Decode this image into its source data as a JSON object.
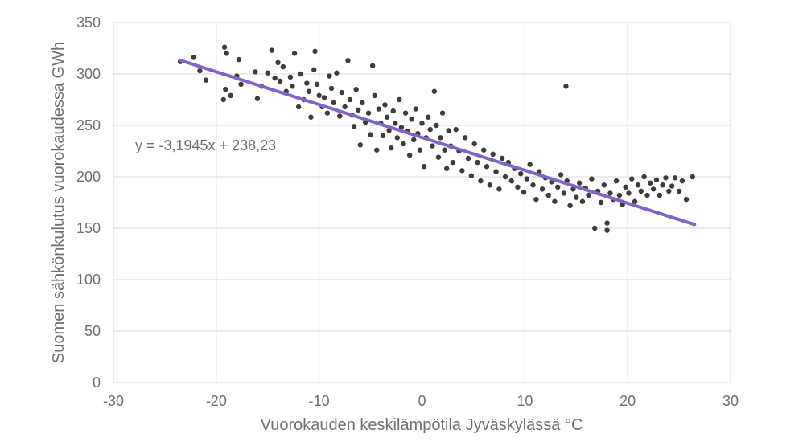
{
  "chart_data": {
    "type": "scatter",
    "title": "",
    "xlabel": "Vuorokauden keskilämpötila Jyväskylässä °C",
    "ylabel": "Suomen sähkönkulutus vuorokaudessa GWh",
    "xlim": [
      -30,
      30
    ],
    "ylim": [
      0,
      350
    ],
    "x_ticks": [
      -30,
      -20,
      -10,
      0,
      10,
      20,
      30
    ],
    "y_ticks": [
      0,
      50,
      100,
      150,
      200,
      250,
      300,
      350
    ],
    "grid": true,
    "legend": "none",
    "colors": {
      "points": "#3c3c3c",
      "trendline": "#8064c8",
      "grid": "#d9d9d9",
      "text": "#6f6f6f"
    },
    "series": [
      {
        "type": "scatter",
        "values": [
          [
            -23.5,
            312
          ],
          [
            -22.2,
            316
          ],
          [
            -21.6,
            303
          ],
          [
            -21.0,
            294
          ],
          [
            -19.2,
            326
          ],
          [
            -19.0,
            320
          ],
          [
            -19.1,
            285
          ],
          [
            -19.3,
            275
          ],
          [
            -18.6,
            279
          ],
          [
            -18.0,
            298
          ],
          [
            -17.8,
            314
          ],
          [
            -17.6,
            290
          ],
          [
            -16.2,
            302
          ],
          [
            -16.0,
            276
          ],
          [
            -15.6,
            288
          ],
          [
            -15.0,
            301
          ],
          [
            -14.6,
            323
          ],
          [
            -14.3,
            296
          ],
          [
            -14.0,
            311
          ],
          [
            -13.8,
            293
          ],
          [
            -13.5,
            307
          ],
          [
            -13.2,
            283
          ],
          [
            -12.8,
            297
          ],
          [
            -12.6,
            288
          ],
          [
            -12.4,
            320
          ],
          [
            -12.0,
            268
          ],
          [
            -11.8,
            300
          ],
          [
            -11.5,
            275
          ],
          [
            -11.2,
            291
          ],
          [
            -11.0,
            283
          ],
          [
            -10.8,
            258
          ],
          [
            -10.5,
            304
          ],
          [
            -10.4,
            322
          ],
          [
            -10.2,
            290
          ],
          [
            -10.0,
            279
          ],
          [
            -9.7,
            268
          ],
          [
            -9.5,
            277
          ],
          [
            -9.2,
            262
          ],
          [
            -9.0,
            298
          ],
          [
            -8.8,
            286
          ],
          [
            -8.6,
            272
          ],
          [
            -8.3,
            301
          ],
          [
            -8.0,
            259
          ],
          [
            -7.8,
            282
          ],
          [
            -7.5,
            268
          ],
          [
            -7.2,
            313
          ],
          [
            -7.0,
            275
          ],
          [
            -6.8,
            260
          ],
          [
            -6.6,
            249
          ],
          [
            -6.4,
            285
          ],
          [
            -6.2,
            265
          ],
          [
            -6.0,
            231
          ],
          [
            -5.8,
            272
          ],
          [
            -5.5,
            253
          ],
          [
            -5.2,
            262
          ],
          [
            -5.0,
            241
          ],
          [
            -4.8,
            308
          ],
          [
            -4.6,
            279
          ],
          [
            -4.4,
            226
          ],
          [
            -4.2,
            266
          ],
          [
            -4.0,
            252
          ],
          [
            -3.8,
            240
          ],
          [
            -3.6,
            270
          ],
          [
            -3.4,
            258
          ],
          [
            -3.2,
            245
          ],
          [
            -3.0,
            228
          ],
          [
            -2.8,
            264
          ],
          [
            -2.6,
            252
          ],
          [
            -2.4,
            238
          ],
          [
            -2.2,
            275
          ],
          [
            -2.0,
            248
          ],
          [
            -1.8,
            232
          ],
          [
            -1.6,
            262
          ],
          [
            -1.4,
            244
          ],
          [
            -1.2,
            221
          ],
          [
            -1.0,
            256
          ],
          [
            -0.8,
            236
          ],
          [
            -0.6,
            266
          ],
          [
            -0.4,
            242
          ],
          [
            -0.2,
            226
          ],
          [
            0.0,
            252
          ],
          [
            0.2,
            210
          ],
          [
            0.4,
            238
          ],
          [
            0.6,
            258
          ],
          [
            0.8,
            246
          ],
          [
            1.0,
            230
          ],
          [
            1.2,
            283
          ],
          [
            1.4,
            250
          ],
          [
            1.6,
            219
          ],
          [
            1.8,
            238
          ],
          [
            2.0,
            262
          ],
          [
            2.2,
            226
          ],
          [
            2.4,
            208
          ],
          [
            2.6,
            245
          ],
          [
            2.8,
            230
          ],
          [
            3.0,
            214
          ],
          [
            3.3,
            246
          ],
          [
            3.6,
            225
          ],
          [
            3.9,
            206
          ],
          [
            4.2,
            238
          ],
          [
            4.5,
            218
          ],
          [
            4.8,
            201
          ],
          [
            5.1,
            232
          ],
          [
            5.4,
            214
          ],
          [
            5.7,
            196
          ],
          [
            6.0,
            226
          ],
          [
            6.3,
            210
          ],
          [
            6.6,
            192
          ],
          [
            6.9,
            222
          ],
          [
            7.2,
            205
          ],
          [
            7.5,
            188
          ],
          [
            7.8,
            218
          ],
          [
            8.1,
            200
          ],
          [
            8.4,
            214
          ],
          [
            8.7,
            196
          ],
          [
            9.0,
            208
          ],
          [
            9.3,
            190
          ],
          [
            9.6,
            203
          ],
          [
            9.9,
            185
          ],
          [
            10.2,
            198
          ],
          [
            10.5,
            212
          ],
          [
            10.8,
            192
          ],
          [
            11.1,
            178
          ],
          [
            11.4,
            205
          ],
          [
            11.7,
            188
          ],
          [
            12.0,
            199
          ],
          [
            12.3,
            182
          ],
          [
            12.6,
            195
          ],
          [
            12.9,
            176
          ],
          [
            13.2,
            190
          ],
          [
            13.5,
            202
          ],
          [
            13.8,
            184
          ],
          [
            14.0,
            288
          ],
          [
            14.1,
            196
          ],
          [
            14.4,
            172
          ],
          [
            14.7,
            188
          ],
          [
            15.0,
            180
          ],
          [
            15.3,
            194
          ],
          [
            15.6,
            176
          ],
          [
            15.9,
            189
          ],
          [
            16.2,
            182
          ],
          [
            16.5,
            198
          ],
          [
            16.8,
            150
          ],
          [
            17.1,
            186
          ],
          [
            17.4,
            175
          ],
          [
            17.7,
            192
          ],
          [
            18.0,
            155
          ],
          [
            18.0,
            148
          ],
          [
            18.3,
            184
          ],
          [
            18.6,
            178
          ],
          [
            18.9,
            196
          ],
          [
            19.2,
            182
          ],
          [
            19.5,
            173
          ],
          [
            19.8,
            190
          ],
          [
            20.1,
            184
          ],
          [
            20.4,
            198
          ],
          [
            20.7,
            176
          ],
          [
            21.0,
            192
          ],
          [
            21.3,
            186
          ],
          [
            21.6,
            200
          ],
          [
            21.9,
            182
          ],
          [
            22.2,
            194
          ],
          [
            22.5,
            188
          ],
          [
            22.8,
            197
          ],
          [
            23.1,
            182
          ],
          [
            23.4,
            192
          ],
          [
            23.7,
            199
          ],
          [
            24.0,
            186
          ],
          [
            24.3,
            191
          ],
          [
            24.6,
            199
          ],
          [
            25.0,
            186
          ],
          [
            25.3,
            196
          ],
          [
            25.7,
            178
          ],
          [
            26.3,
            200
          ]
        ]
      }
    ],
    "trendline": {
      "slope": -3.1945,
      "intercept": 238.23,
      "x_range": [
        -23.5,
        26.5
      ]
    },
    "annotations": [
      {
        "text": "y = -3,1945x + 238,23"
      }
    ]
  }
}
